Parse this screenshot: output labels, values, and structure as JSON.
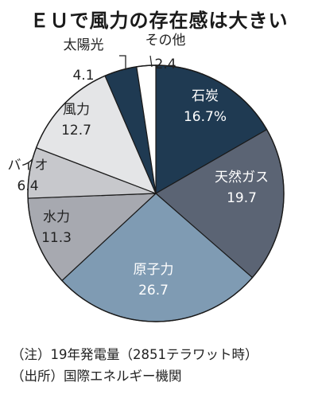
{
  "chart_data": {
    "type": "pie",
    "title": "ＥＵで風力の存在感は大きい",
    "categories": [
      "石炭",
      "天然ガス",
      "原子力",
      "水力",
      "バイオ",
      "風力",
      "太陽光",
      "その他"
    ],
    "values": [
      16.7,
      19.7,
      26.7,
      11.3,
      6.4,
      12.7,
      4.1,
      2.4
    ],
    "value_labels": [
      "16.7%",
      "19.7",
      "26.7",
      "11.3",
      "6.4",
      "12.7",
      "4.1",
      "2.4"
    ],
    "colors": [
      "#1f3a52",
      "#5b6474",
      "#7f9bb3",
      "#a7a9b0",
      "#c7c8cc",
      "#e4e5e7",
      "#1f3a52",
      "#ffffff"
    ],
    "text_colors": [
      "#ffffff",
      "#ffffff",
      "#ffffff",
      "#222222",
      "#222222",
      "#222222",
      "#222222",
      "#222222"
    ],
    "start_angle_deg": 0,
    "direction": "clockwise",
    "legend": "none"
  },
  "notes": {
    "line1": "（注）19年発電量（2851テラワット時）",
    "line2": "（出所）国際エネルギー機関"
  }
}
